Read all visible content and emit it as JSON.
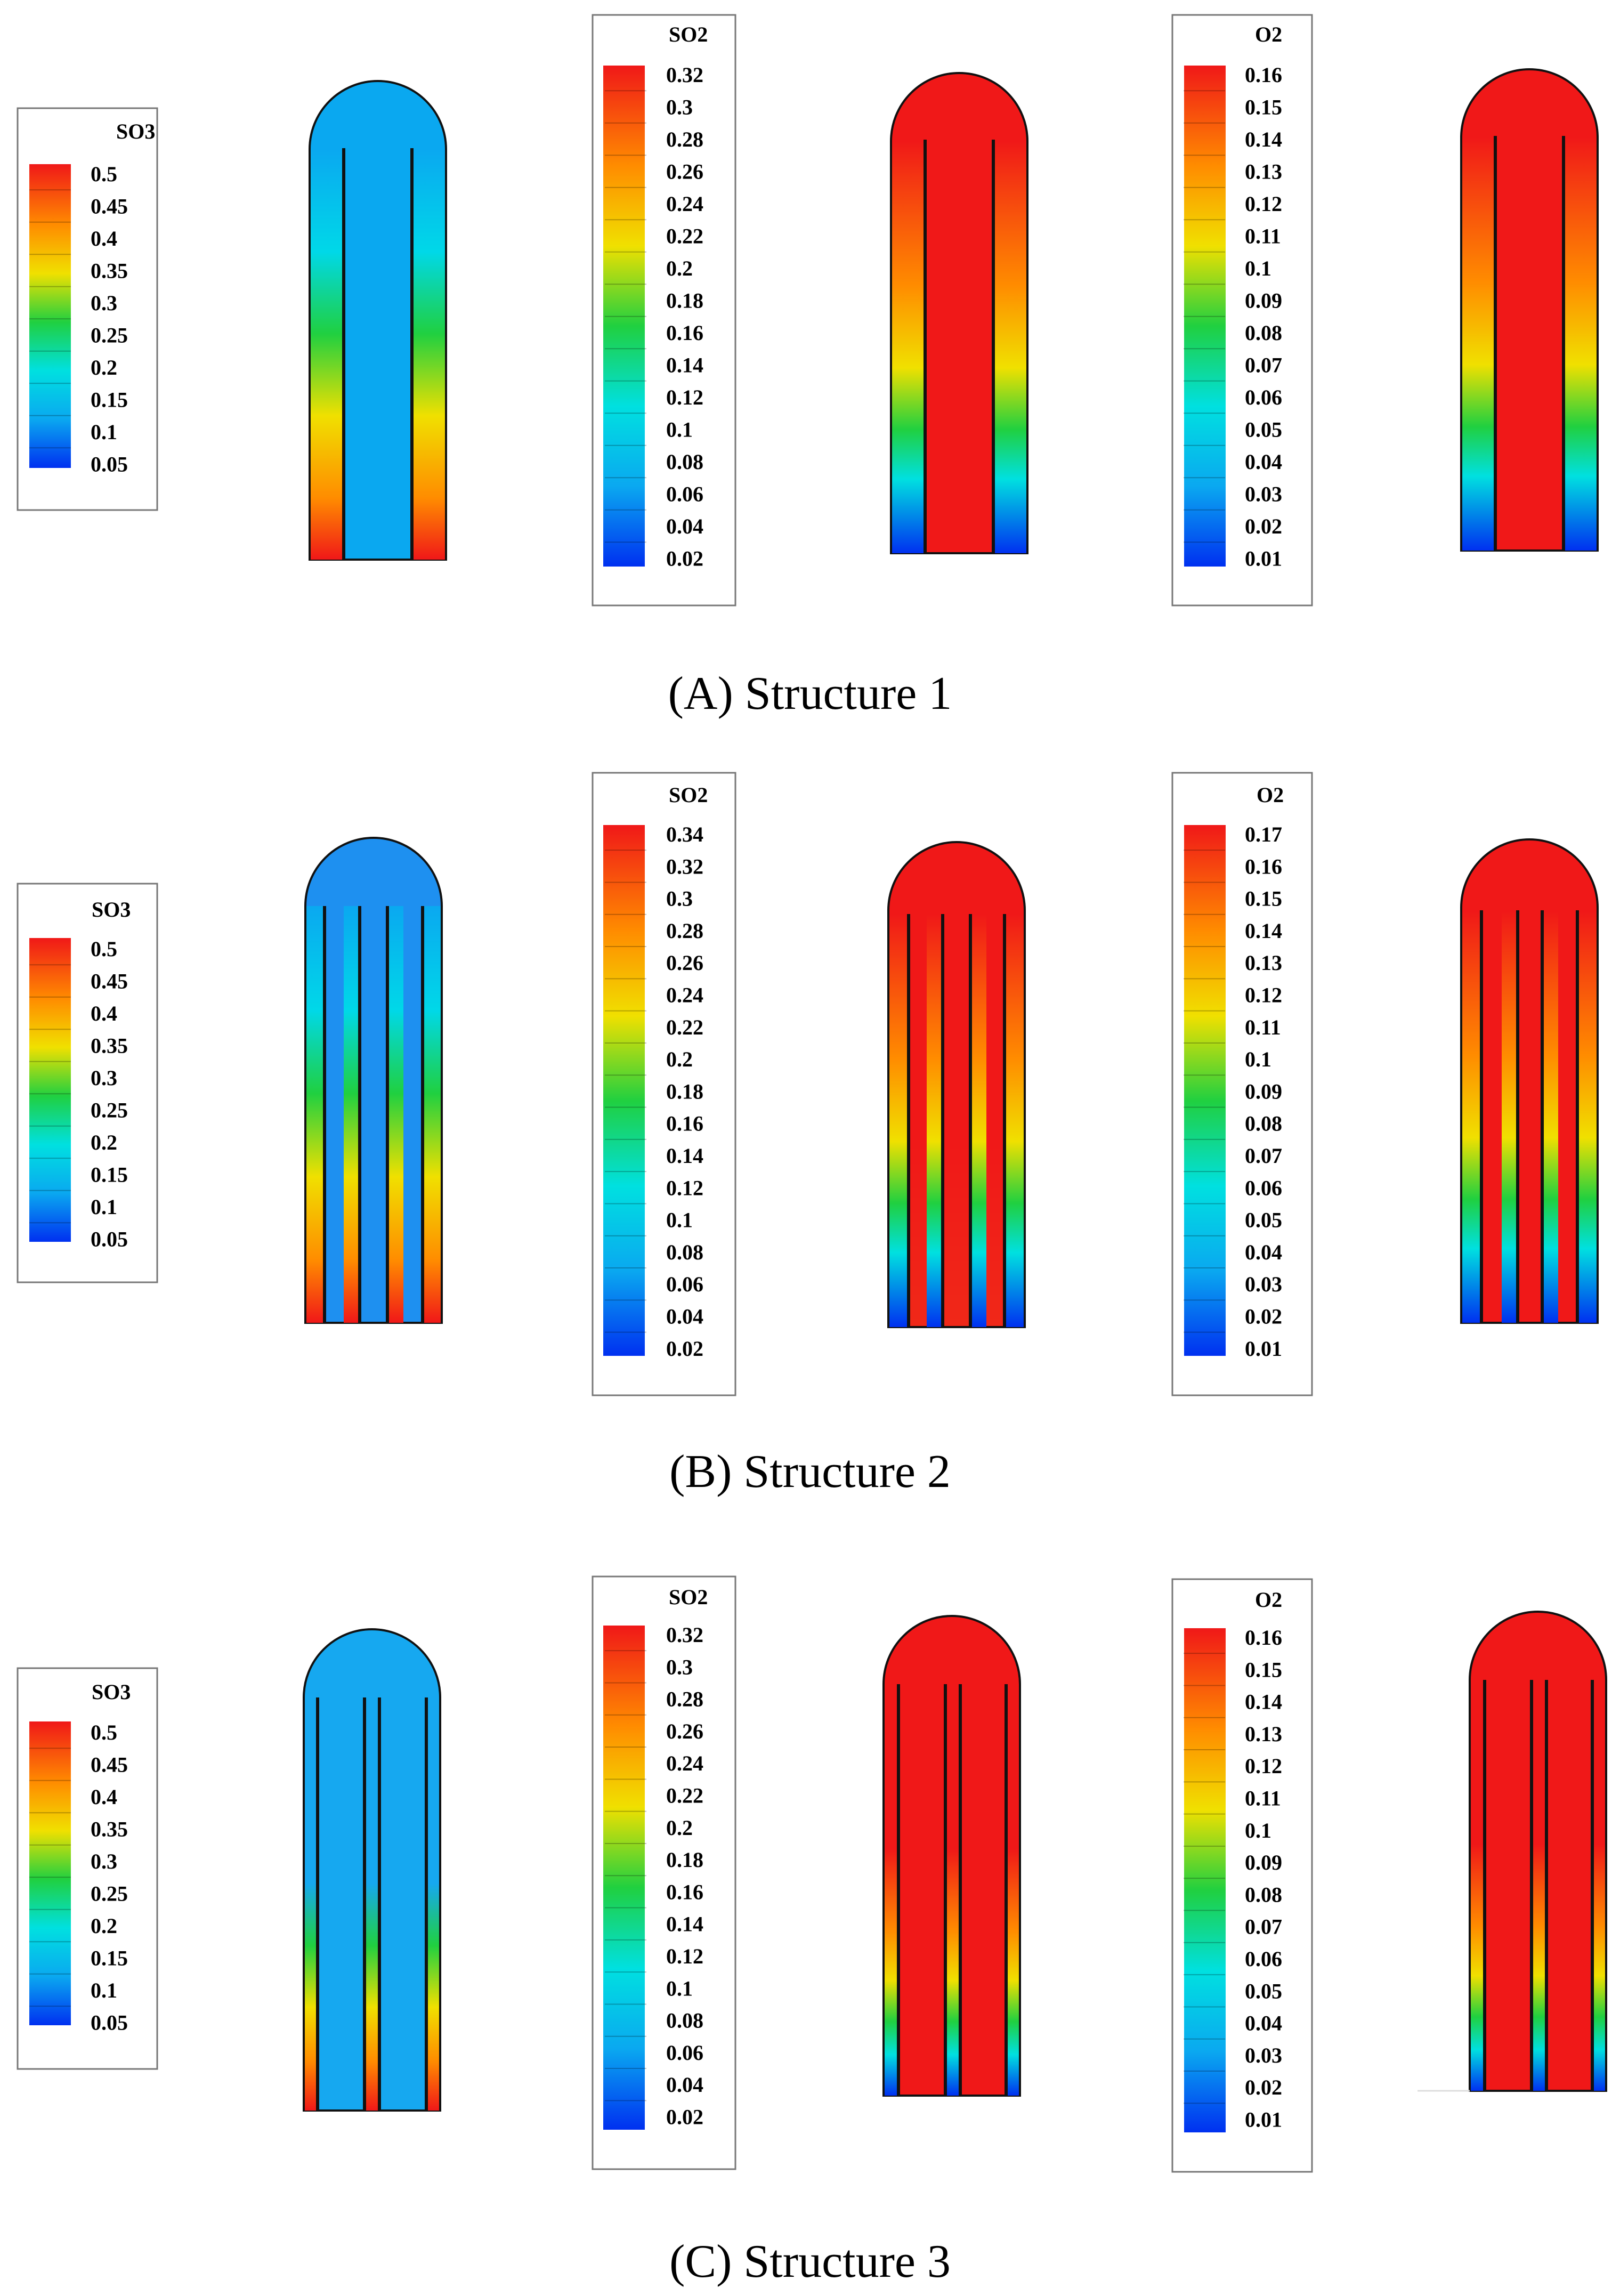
{
  "figure": {
    "panels": [
      {
        "caption": "(A) Structure 1",
        "legends": [
          {
            "title": "SO3",
            "ticks": [
              "0.5",
              "0.45",
              "0.4",
              "0.35",
              "0.3",
              "0.25",
              "0.2",
              "0.15",
              "0.1",
              "0.05"
            ]
          },
          {
            "title": "SO2",
            "ticks": [
              "0.32",
              "0.3",
              "0.28",
              "0.26",
              "0.24",
              "0.22",
              "0.2",
              "0.18",
              "0.16",
              "0.14",
              "0.12",
              "0.1",
              "0.08",
              "0.06",
              "0.04",
              "0.02"
            ]
          },
          {
            "title": "O2",
            "ticks": [
              "0.16",
              "0.15",
              "0.14",
              "0.13",
              "0.12",
              "0.11",
              "0.1",
              "0.09",
              "0.08",
              "0.07",
              "0.06",
              "0.05",
              "0.04",
              "0.03",
              "0.02",
              "0.01"
            ]
          }
        ]
      },
      {
        "caption": "(B) Structure 2",
        "legends": [
          {
            "title": "SO3",
            "ticks": [
              "0.5",
              "0.45",
              "0.4",
              "0.35",
              "0.3",
              "0.25",
              "0.2",
              "0.15",
              "0.1",
              "0.05"
            ]
          },
          {
            "title": "SO2",
            "ticks": [
              "0.34",
              "0.32",
              "0.3",
              "0.28",
              "0.26",
              "0.24",
              "0.22",
              "0.2",
              "0.18",
              "0.16",
              "0.14",
              "0.12",
              "0.1",
              "0.08",
              "0.06",
              "0.04",
              "0.02"
            ]
          },
          {
            "title": "O2",
            "ticks": [
              "0.17",
              "0.16",
              "0.15",
              "0.14",
              "0.13",
              "0.12",
              "0.11",
              "0.1",
              "0.09",
              "0.08",
              "0.07",
              "0.06",
              "0.05",
              "0.04",
              "0.03",
              "0.02",
              "0.01"
            ]
          }
        ]
      },
      {
        "caption": "(C) Structure 3",
        "legends": [
          {
            "title": "SO3",
            "ticks": [
              "0.5",
              "0.45",
              "0.4",
              "0.35",
              "0.3",
              "0.25",
              "0.2",
              "0.15",
              "0.1",
              "0.05"
            ]
          },
          {
            "title": "SO2",
            "ticks": [
              "0.32",
              "0.3",
              "0.28",
              "0.26",
              "0.24",
              "0.22",
              "0.2",
              "0.18",
              "0.16",
              "0.14",
              "0.12",
              "0.1",
              "0.08",
              "0.06",
              "0.04",
              "0.02"
            ]
          },
          {
            "title": "O2",
            "ticks": [
              "0.16",
              "0.15",
              "0.14",
              "0.13",
              "0.12",
              "0.11",
              "0.1",
              "0.09",
              "0.08",
              "0.07",
              "0.06",
              "0.05",
              "0.04",
              "0.03",
              "0.02",
              "0.01"
            ]
          }
        ]
      }
    ],
    "colors": {
      "red": "#f01818",
      "orange": "#ff8c00",
      "yellow": "#f0e000",
      "green": "#20d040",
      "cyan": "#00e0e0",
      "lightblue": "#0aa8f0",
      "blue": "#0030f0",
      "so3_bulk_s1": "#0aa8f0",
      "so3_bulk_s2": "#1e90f0",
      "so3_bulk_s3": "#16a8f0"
    }
  }
}
